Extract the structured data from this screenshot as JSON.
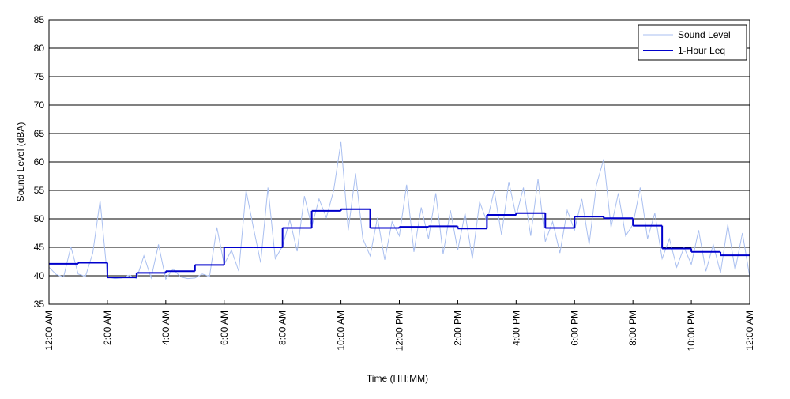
{
  "chart_data": {
    "type": "line",
    "xlabel": "Time (HH:MM)",
    "ylabel": "Sound Level (dBA)",
    "xlim": [
      0,
      24
    ],
    "ylim": [
      35,
      85
    ],
    "yticks": [
      35,
      40,
      45,
      50,
      55,
      60,
      65,
      70,
      75,
      80,
      85
    ],
    "xticks": [
      {
        "value": 0,
        "label": "12:00 AM"
      },
      {
        "value": 2,
        "label": "2:00 AM"
      },
      {
        "value": 4,
        "label": "4:00 AM"
      },
      {
        "value": 6,
        "label": "6:00 AM"
      },
      {
        "value": 8,
        "label": "8:00 AM"
      },
      {
        "value": 10,
        "label": "10:00 AM"
      },
      {
        "value": 12,
        "label": "12:00 PM"
      },
      {
        "value": 14,
        "label": "2:00 PM"
      },
      {
        "value": 16,
        "label": "4:00 PM"
      },
      {
        "value": 18,
        "label": "6:00 PM"
      },
      {
        "value": 20,
        "label": "8:00 PM"
      },
      {
        "value": 22,
        "label": "10:00 PM"
      },
      {
        "value": 24,
        "label": "12:00 AM"
      }
    ],
    "grid": true,
    "legend": "upper right",
    "series": [
      {
        "name": "Sound Level",
        "color": "#a9bff0",
        "x": [
          0,
          0.25,
          0.5,
          0.75,
          1,
          1.25,
          1.5,
          1.75,
          2,
          2.25,
          2.5,
          2.75,
          3,
          3.25,
          3.5,
          3.75,
          4,
          4.25,
          4.5,
          4.75,
          5,
          5.25,
          5.5,
          5.75,
          6,
          6.25,
          6.5,
          6.75,
          7,
          7.25,
          7.5,
          7.75,
          8,
          8.25,
          8.5,
          8.75,
          9,
          9.25,
          9.5,
          9.75,
          10,
          10.25,
          10.5,
          10.75,
          11,
          11.25,
          11.5,
          11.75,
          12,
          12.25,
          12.5,
          12.75,
          13,
          13.25,
          13.5,
          13.75,
          14,
          14.25,
          14.5,
          14.75,
          15,
          15.25,
          15.5,
          15.75,
          16,
          16.25,
          16.5,
          16.75,
          17,
          17.25,
          17.5,
          17.75,
          18,
          18.25,
          18.5,
          18.75,
          19,
          19.25,
          19.5,
          19.75,
          20,
          20.25,
          20.5,
          20.75,
          21,
          21.25,
          21.5,
          21.75,
          22,
          22.25,
          22.5,
          22.75,
          23,
          23.25,
          23.5,
          23.75,
          24
        ],
        "values": [
          41.5,
          40.2,
          39.8,
          45.1,
          40.3,
          39.9,
          44.0,
          53.2,
          39.8,
          39.5,
          39.6,
          40.1,
          39.5,
          43.5,
          39.6,
          45.5,
          39.4,
          41.2,
          39.8,
          39.5,
          39.6,
          40.3,
          39.9,
          48.5,
          42.0,
          44.5,
          40.8,
          55.0,
          48.5,
          42.3,
          55.5,
          43.0,
          45.2,
          49.8,
          44.3,
          54.0,
          48.6,
          53.5,
          50.2,
          55.0,
          63.5,
          48.0,
          58.0,
          46.5,
          43.5,
          50.2,
          42.8,
          49.5,
          47.0,
          56.0,
          44.2,
          52.0,
          46.5,
          54.5,
          43.8,
          51.5,
          44.5,
          51.0,
          43.0,
          53.0,
          49.5,
          55.0,
          47.2,
          56.5,
          50.5,
          55.5,
          47.0,
          57.0,
          46.0,
          49.5,
          44.0,
          51.5,
          48.0,
          53.5,
          45.5,
          56.0,
          60.5,
          48.5,
          54.5,
          47.0,
          49.0,
          55.5,
          46.5,
          51.0,
          43.0,
          46.5,
          41.5,
          45.0,
          42.0,
          48.0,
          40.8,
          45.5,
          40.5,
          49.0,
          41.0,
          47.5,
          39.8
        ]
      },
      {
        "name": "1-Hour Leq",
        "color": "#0000cc",
        "step": true,
        "bins": [
          0,
          1,
          2,
          3,
          4,
          5,
          6,
          7,
          8,
          9,
          10,
          11,
          12,
          13,
          14,
          15,
          16,
          17,
          18,
          19,
          20,
          21,
          22,
          23,
          24
        ],
        "values": [
          42.1,
          42.3,
          39.7,
          40.5,
          40.8,
          41.9,
          45.0,
          45.0,
          48.4,
          51.4,
          51.7,
          48.4,
          48.6,
          48.7,
          48.3,
          50.7,
          51.0,
          48.4,
          50.4,
          50.1,
          48.8,
          44.8,
          44.2,
          43.6
        ]
      }
    ]
  }
}
